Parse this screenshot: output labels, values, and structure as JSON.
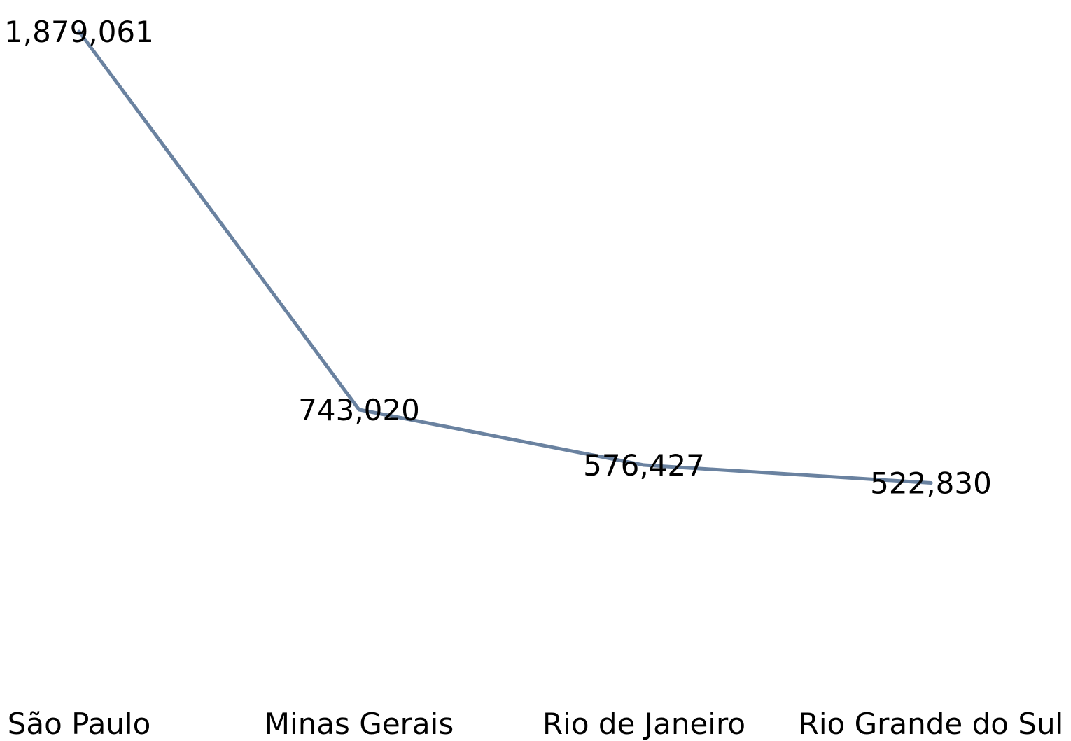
{
  "chart_data": {
    "type": "line",
    "categories": [
      "São Paulo",
      "Minas Gerais",
      "Rio de Janeiro",
      "Rio Grande do Sul"
    ],
    "series": [
      {
        "values": [
          1879061,
          743020,
          576427,
          522830
        ],
        "labels": [
          "1,879,061",
          "743,020",
          "576,427",
          "522,830"
        ],
        "color": "#6a82a0"
      }
    ],
    "title": "",
    "xlabel": "",
    "ylabel": "",
    "ylim": [
      0,
      1900000
    ],
    "grid": false,
    "legend": false,
    "axes_visible": false
  }
}
